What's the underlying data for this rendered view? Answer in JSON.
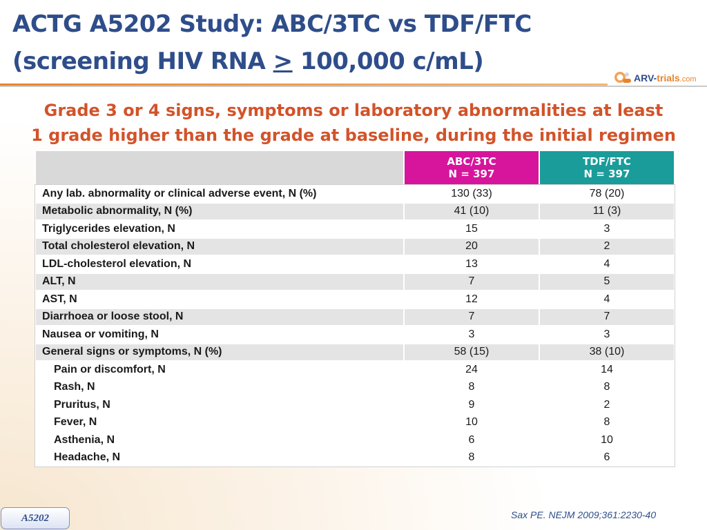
{
  "title": {
    "line1": "ACTG A5202 Study: ABC/3TC vs TDF/FTC",
    "line2_prefix": "(screening HIV RNA ",
    "line2_symbol": ">",
    "line2_suffix": " 100,000 c/mL)"
  },
  "logo": {
    "arv": "ARV-",
    "trials": "trials",
    "dotcom": ".com"
  },
  "subtitle": {
    "line1": "Grade 3 or 4 signs, symptoms or laboratory abnormalities at least",
    "line2": "1 grade higher than the grade at baseline, during the initial regimen"
  },
  "colors": {
    "abc_header": "#d6159c",
    "tdf_header": "#1a9c9a",
    "title": "#2e4d8a",
    "subtitle": "#d2532a"
  },
  "table": {
    "columns": [
      {
        "name": "ABC/3TC",
        "n": "N = 397"
      },
      {
        "name": "TDF/FTC",
        "n": "N = 397"
      }
    ],
    "rows": [
      {
        "label": "Any lab. abnormality or clinical adverse event, N (%)",
        "abc": "130 (33)",
        "tdf": "78 (20)"
      },
      {
        "label": "Metabolic abnormality, N (%)",
        "abc": "41 (10)",
        "tdf": "11 (3)"
      },
      {
        "label": "Triglycerides elevation, N",
        "abc": "15",
        "tdf": "3"
      },
      {
        "label": "Total cholesterol elevation, N",
        "abc": "20",
        "tdf": "2"
      },
      {
        "label": "LDL-cholesterol elevation, N",
        "abc": "13",
        "tdf": "4"
      },
      {
        "label": "ALT, N",
        "abc": "7",
        "tdf": "5"
      },
      {
        "label": "AST, N",
        "abc": "12",
        "tdf": "4"
      },
      {
        "label": "Diarrhoea or loose stool, N",
        "abc": "7",
        "tdf": "7"
      },
      {
        "label": "Nausea or vomiting, N",
        "abc": "3",
        "tdf": "3"
      },
      {
        "label": "General signs or symptoms, N (%)",
        "abc": "58 (15)",
        "tdf": "38 (10)"
      },
      {
        "label": "Pain or discomfort, N",
        "abc": "24",
        "tdf": "14"
      },
      {
        "label": "Rash, N",
        "abc": "8",
        "tdf": "8"
      },
      {
        "label": "Pruritus, N",
        "abc": "9",
        "tdf": "2"
      },
      {
        "label": "Fever, N",
        "abc": "10",
        "tdf": "8"
      },
      {
        "label": "Asthenia, N",
        "abc": "6",
        "tdf": "10"
      },
      {
        "label": "Headache, N",
        "abc": "8",
        "tdf": "6"
      }
    ]
  },
  "citation": "Sax PE. NEJM 2009;361:2230-40",
  "badge": "A5202"
}
